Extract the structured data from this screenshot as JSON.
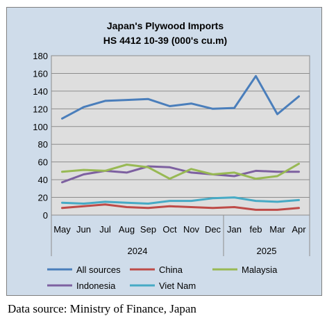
{
  "chart_data": {
    "type": "line",
    "title": "Japan's Plywood Imports",
    "subtitle": "HS 4412 10-39  (000's cu.m)",
    "categories": [
      "May",
      "Jun",
      "Jul",
      "Aug",
      "Sep",
      "Oct",
      "Nov",
      "Dec",
      "Jan",
      "feb",
      "Mar",
      "Apr"
    ],
    "year_groups": [
      {
        "label": "2024",
        "count": 8
      },
      {
        "label": "2025",
        "count": 4
      }
    ],
    "ylim": [
      0,
      180
    ],
    "yticks": [
      "0",
      "20",
      "40",
      "60",
      "80",
      "100",
      "120",
      "140",
      "160",
      "180"
    ],
    "grid": true,
    "legend_position": "bottom",
    "series": [
      {
        "name": "All sources",
        "color": "#4a7ebb",
        "values": [
          109,
          122,
          129,
          130,
          131,
          123,
          126,
          120,
          121,
          157,
          114,
          134
        ]
      },
      {
        "name": "China",
        "color": "#be4b48",
        "values": [
          8,
          10,
          12,
          9,
          8,
          10,
          9,
          8,
          9,
          6,
          6,
          8
        ]
      },
      {
        "name": "Malaysia",
        "color": "#98b954",
        "values": [
          49,
          51,
          50,
          57,
          54,
          41,
          52,
          46,
          48,
          41,
          44,
          58
        ]
      },
      {
        "name": "Indonesia",
        "color": "#7d60a0",
        "values": [
          37,
          46,
          50,
          48,
          55,
          54,
          48,
          46,
          44,
          50,
          49,
          49
        ]
      },
      {
        "name": "Viet Nam",
        "color": "#46aac5",
        "values": [
          14,
          13,
          15,
          14,
          13,
          16,
          16,
          19,
          20,
          16,
          15,
          17
        ]
      }
    ]
  },
  "source_note": "Data source: Ministry of Finance, Japan"
}
